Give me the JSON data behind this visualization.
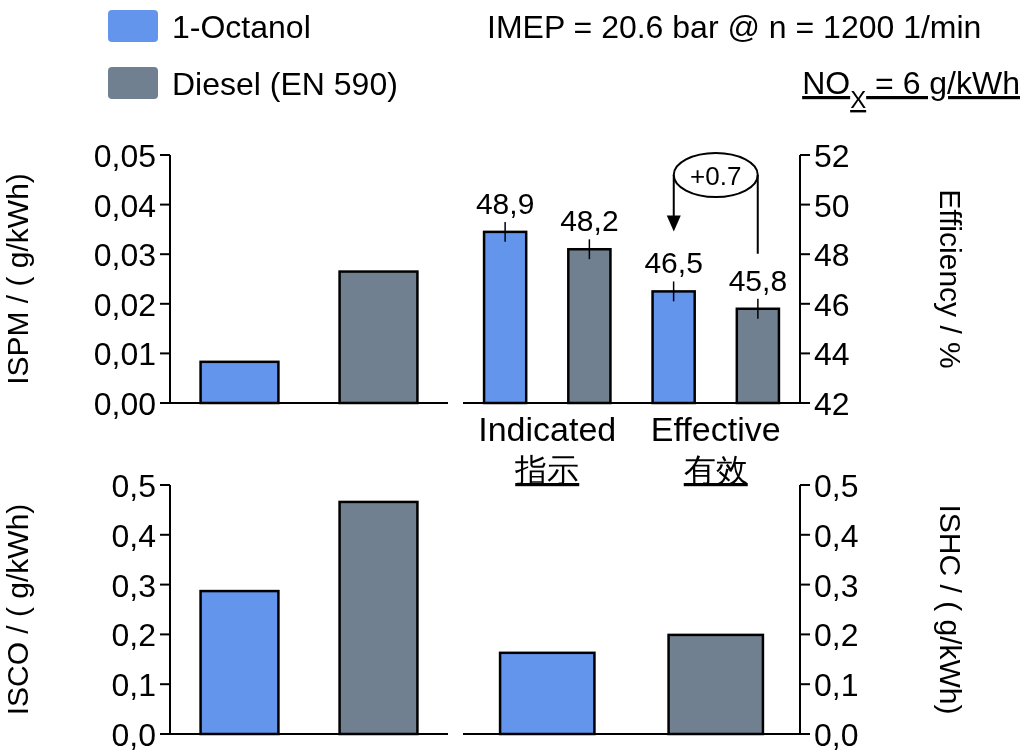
{
  "chart_data": [
    {
      "type": "bar",
      "ylabel": "ISPM / ( g/kWh)",
      "categories": [
        null
      ],
      "legend": "top left",
      "series": [
        {
          "name": "1-Octanol",
          "color": "#6495ed",
          "values": [
            0.0083
          ]
        },
        {
          "name": "Diesel (EN 590)",
          "color": "#708090",
          "values": [
            0.0265
          ]
        }
      ],
      "ylim": [
        0,
        0.05
      ],
      "yticks": [
        {
          "value": 0,
          "label": "0,00"
        },
        {
          "value": 0.01,
          "label": "0,01"
        },
        {
          "value": 0.02,
          "label": "0,02"
        },
        {
          "value": 0.03,
          "label": "0,03"
        },
        {
          "value": 0.04,
          "label": "0,04"
        },
        {
          "value": 0.05,
          "label": "0,05"
        }
      ]
    },
    {
      "type": "bar",
      "title": "IMEP = 20.6 bar @ n = 1200 1/min",
      "subtitle": "NO$_{X}$ = 6 g/kWh",
      "ylabel": "Efficiency / %",
      "categories": [
        "Indicated\n指示",
        "Effective\n有效"
      ],
      "annotations": [
        "+0.7"
      ],
      "series": [
        {
          "color": "#6495ed",
          "values": [
            48.9,
            46.5
          ],
          "errors": [
            0.4,
            0.4
          ],
          "value_labels": [
            "48,9",
            "46,5"
          ]
        },
        {
          "color": "#708090",
          "values": [
            48.2,
            45.8
          ],
          "errors": [
            0.4,
            0.4
          ],
          "value_labels": [
            "48,2",
            "45,8"
          ]
        }
      ],
      "ylim": [
        42,
        52
      ],
      "yticks": [
        42,
        44,
        46,
        48,
        50,
        52
      ]
    },
    {
      "type": "bar",
      "ylabel": "ISCO / ( g/kWh)",
      "categories": [
        null
      ],
      "series": [
        {
          "color": "#6495ed",
          "values": [
            0.287
          ]
        },
        {
          "color": "#708090",
          "values": [
            0.466
          ]
        }
      ],
      "ylim": [
        0,
        0.5
      ],
      "yticks": [
        {
          "value": 0,
          "label": "0,0"
        },
        {
          "value": 0.1,
          "label": "0,1"
        },
        {
          "value": 0.2,
          "label": "0,2"
        },
        {
          "value": 0.3,
          "label": "0,3"
        },
        {
          "value": 0.4,
          "label": "0,4"
        },
        {
          "value": 0.5,
          "label": "0,5"
        }
      ]
    },
    {
      "type": "bar",
      "ylabel": "ISHC / ( g/kWh)",
      "categories": [
        null
      ],
      "series": [
        {
          "color": "#6495ed",
          "values": [
            0.163
          ]
        },
        {
          "color": "#708090",
          "values": [
            0.199
          ]
        }
      ],
      "ylim": [
        0,
        0.5
      ],
      "yticks": [
        {
          "value": 0,
          "label": "0,0"
        },
        {
          "value": 0.1,
          "label": "0,1"
        },
        {
          "value": 0.2,
          "label": "0,2"
        },
        {
          "value": 0.3,
          "label": "0,3"
        },
        {
          "value": 0.4,
          "label": "0,4"
        },
        {
          "value": 0.5,
          "label": "0,5"
        }
      ]
    }
  ]
}
